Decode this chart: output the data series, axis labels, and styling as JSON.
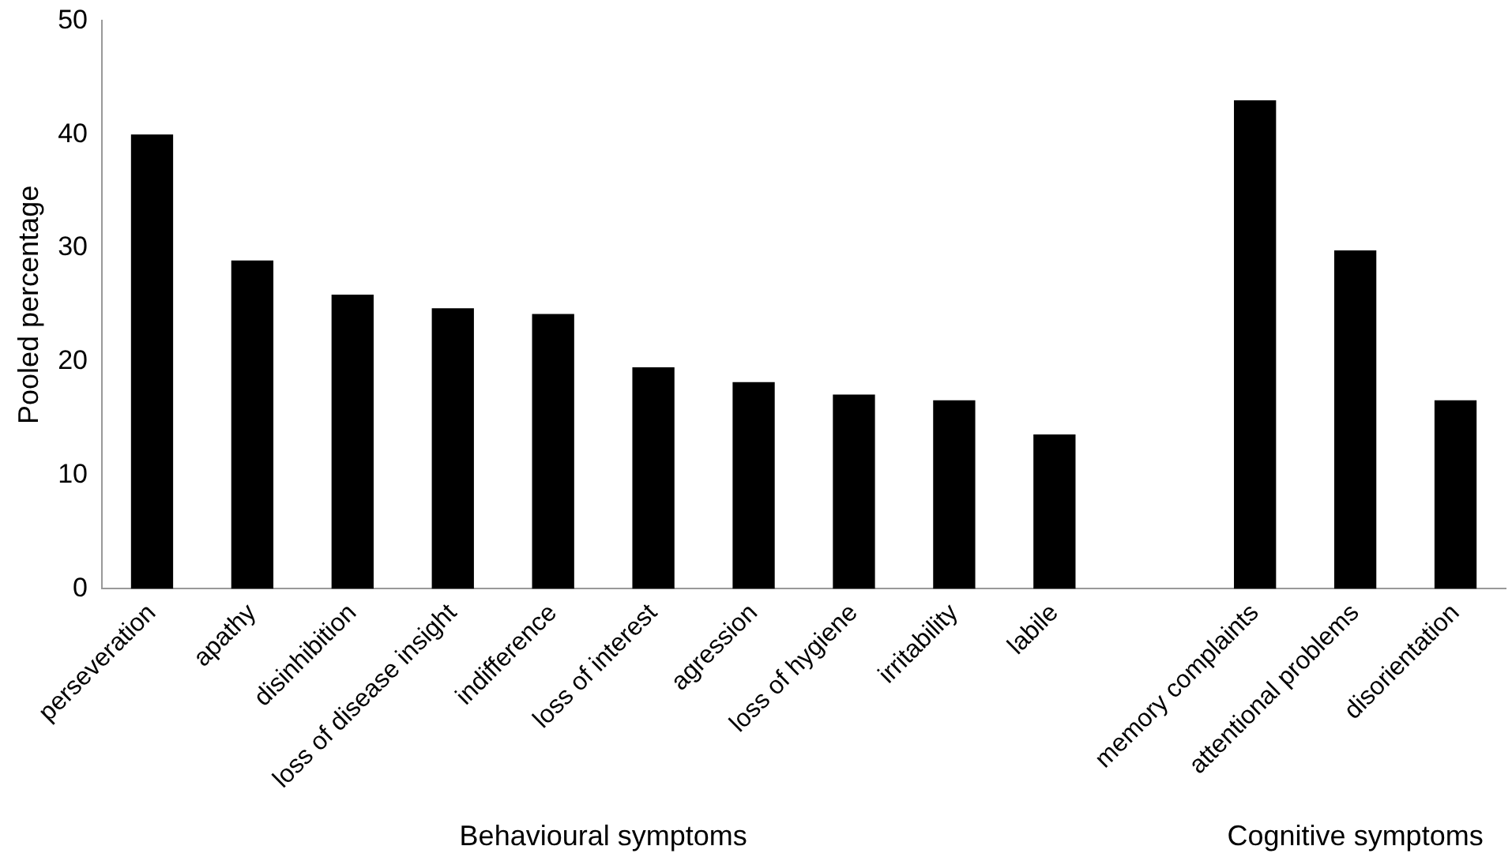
{
  "chart_data": {
    "type": "bar",
    "ylabel": "Pooled percentage",
    "categories": [
      "perseveration",
      "apathy",
      "disinhibition",
      "loss of disease insight",
      "indifference",
      "loss of interest",
      "agression",
      "loss of hygiene",
      "irritability",
      "labile",
      null,
      "memory complaints",
      "attentional problems",
      "disorientation"
    ],
    "values": [
      40,
      28.9,
      25.9,
      24.7,
      24.2,
      19.5,
      18.2,
      17.1,
      16.6,
      13.6,
      null,
      43,
      29.8,
      16.6
    ],
    "color": "#000000",
    "ylim": [
      0,
      50
    ],
    "yticks": [
      0,
      10,
      20,
      30,
      40,
      50
    ],
    "grid": false,
    "legend": false,
    "annotations": [
      "Behavioural symptoms",
      "Cognitive symptoms"
    ]
  }
}
